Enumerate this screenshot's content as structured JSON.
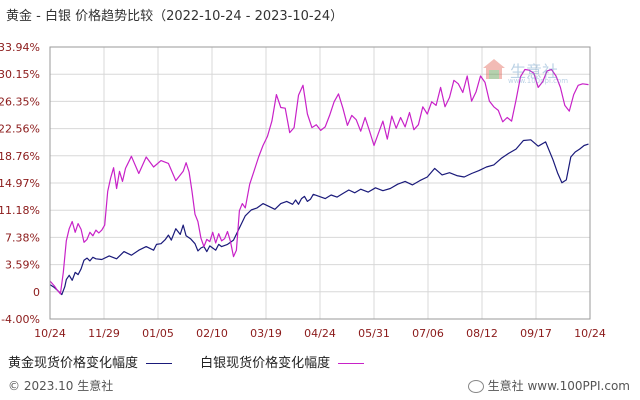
{
  "title": "黄金 - 白银 价格趋势比较（2022-10-24 - 2023-10-24）",
  "watermark": {
    "name": "生意社",
    "url": "www.100ppi.com"
  },
  "footer": {
    "copyright": "© 2023.10 生意社",
    "site": "www.100PPI.com"
  },
  "chart_data": {
    "type": "line",
    "title": "黄金 - 白银 价格趋势比较（2022-10-24 - 2023-10-24）",
    "xlabel": "",
    "ylabel": "",
    "x_ticks": [
      "10/24",
      "11/29",
      "01/05",
      "02/10",
      "03/19",
      "04/24",
      "05/31",
      "07/06",
      "08/12",
      "09/17",
      "10/24"
    ],
    "y_ticks": [
      "33.94%",
      "30.15%",
      "26.35%",
      "22.56%",
      "18.76%",
      "14.97%",
      "11.18%",
      "7.38%",
      "3.59%",
      "0",
      "-4.00%"
    ],
    "ylim": [
      -4.0,
      33.94
    ],
    "xlim": [
      0,
      365
    ],
    "grid": true,
    "legend": "bottom",
    "series": [
      {
        "name": "黄金现货价格变化幅度",
        "color": "#1a1a7a",
        "x": [
          0,
          3,
          5,
          8,
          10,
          11,
          13,
          15,
          17,
          19,
          21,
          23,
          25,
          27,
          29,
          31,
          35,
          40,
          45,
          50,
          55,
          60,
          65,
          70,
          72,
          75,
          78,
          80,
          82,
          85,
          88,
          90,
          92,
          95,
          98,
          100,
          102,
          104,
          106,
          108,
          110,
          112,
          114,
          116,
          120,
          124,
          128,
          132,
          136,
          140,
          144,
          148,
          152,
          156,
          160,
          164,
          166,
          168,
          170,
          172,
          174,
          176,
          178,
          182,
          186,
          190,
          194,
          198,
          202,
          206,
          210,
          215,
          220,
          225,
          230,
          235,
          240,
          245,
          250,
          255,
          260,
          265,
          270,
          275,
          280,
          285,
          290,
          295,
          300,
          305,
          310,
          315,
          320,
          325,
          330,
          335,
          340,
          343,
          346,
          349,
          352,
          355,
          358,
          361,
          364
        ],
        "y": [
          0.8,
          0.4,
          0.0,
          -0.6,
          0.5,
          1.5,
          2.1,
          1.4,
          2.5,
          2.2,
          3.0,
          4.2,
          4.5,
          4.1,
          4.6,
          4.4,
          4.3,
          4.8,
          4.4,
          5.4,
          4.9,
          5.6,
          6.1,
          5.6,
          6.4,
          6.5,
          7.1,
          7.7,
          7.0,
          8.6,
          7.8,
          9.1,
          7.6,
          7.2,
          6.5,
          5.5,
          5.9,
          6.1,
          5.4,
          6.2,
          5.9,
          5.6,
          6.4,
          6.1,
          6.4,
          7.0,
          8.7,
          10.4,
          11.2,
          11.5,
          12.1,
          11.7,
          11.3,
          12.1,
          12.4,
          12.0,
          12.6,
          12.0,
          12.8,
          13.1,
          12.4,
          12.7,
          13.4,
          13.1,
          12.8,
          13.3,
          13.0,
          13.5,
          14.0,
          13.6,
          14.1,
          13.7,
          14.3,
          13.9,
          14.2,
          14.8,
          15.2,
          14.7,
          15.3,
          15.8,
          17.0,
          16.1,
          16.4,
          16.0,
          15.8,
          16.3,
          16.7,
          17.2,
          17.5,
          18.4,
          19.1,
          19.7,
          20.9,
          21.0,
          20.1,
          20.7,
          18.2,
          16.4,
          15.0,
          15.4,
          18.6,
          19.3,
          19.7,
          20.2,
          20.4
        ]
      },
      {
        "name": "白银现货价格变化幅度",
        "color": "#c822c8",
        "x": [
          0,
          3,
          5,
          7,
          9,
          11,
          13,
          15,
          17,
          19,
          21,
          23,
          25,
          27,
          29,
          31,
          33,
          35,
          37,
          39,
          41,
          43,
          45,
          47,
          49,
          51,
          55,
          60,
          65,
          70,
          75,
          80,
          85,
          90,
          92,
          94,
          96,
          98,
          100,
          102,
          104,
          106,
          108,
          110,
          112,
          114,
          116,
          118,
          120,
          122,
          124,
          126,
          128,
          130,
          132,
          135,
          138,
          141,
          144,
          147,
          150,
          153,
          156,
          159,
          162,
          165,
          168,
          171,
          174,
          177,
          180,
          183,
          186,
          189,
          192,
          195,
          198,
          201,
          204,
          207,
          210,
          213,
          216,
          219,
          222,
          225,
          228,
          231,
          234,
          237,
          240,
          243,
          246,
          249,
          252,
          255,
          258,
          261,
          264,
          267,
          270,
          273,
          276,
          279,
          282,
          285,
          288,
          291,
          294,
          297,
          300,
          303,
          306,
          309,
          312,
          315,
          318,
          321,
          324,
          327,
          330,
          333,
          336,
          339,
          342,
          345,
          348,
          351,
          354,
          357,
          360,
          364
        ],
        "y": [
          1.3,
          0.6,
          0.0,
          -0.5,
          2.5,
          6.9,
          8.6,
          9.6,
          8.1,
          9.3,
          8.5,
          6.7,
          7.1,
          8.1,
          7.6,
          8.4,
          8.0,
          8.4,
          9.1,
          13.8,
          15.7,
          17.1,
          14.2,
          16.6,
          15.2,
          17.0,
          18.7,
          16.3,
          18.6,
          17.2,
          18.1,
          17.7,
          15.3,
          16.6,
          17.8,
          16.5,
          13.8,
          10.6,
          9.6,
          7.3,
          6.1,
          7.1,
          6.8,
          8.1,
          6.6,
          7.9,
          6.9,
          7.2,
          8.2,
          6.8,
          4.7,
          5.6,
          11.1,
          12.1,
          11.5,
          14.8,
          16.7,
          18.6,
          20.2,
          21.5,
          23.6,
          27.3,
          25.5,
          25.4,
          22.0,
          22.7,
          27.2,
          28.6,
          24.6,
          22.7,
          23.1,
          22.3,
          22.8,
          24.4,
          26.3,
          27.4,
          25.4,
          23.0,
          24.4,
          23.8,
          22.2,
          24.1,
          22.2,
          20.2,
          21.9,
          23.6,
          21.1,
          24.3,
          22.6,
          24.1,
          22.8,
          24.8,
          22.4,
          23.1,
          25.6,
          24.6,
          26.3,
          25.8,
          28.3,
          25.6,
          26.9,
          29.3,
          28.8,
          27.6,
          29.9,
          26.4,
          27.7,
          29.9,
          29.0,
          26.4,
          25.6,
          25.1,
          23.5,
          24.1,
          23.6,
          26.5,
          29.8,
          30.8,
          30.7,
          30.3,
          28.3,
          29.1,
          30.6,
          30.8,
          29.9,
          28.3,
          25.8,
          25.0,
          27.3,
          28.6,
          28.8,
          28.7
        ]
      }
    ]
  }
}
